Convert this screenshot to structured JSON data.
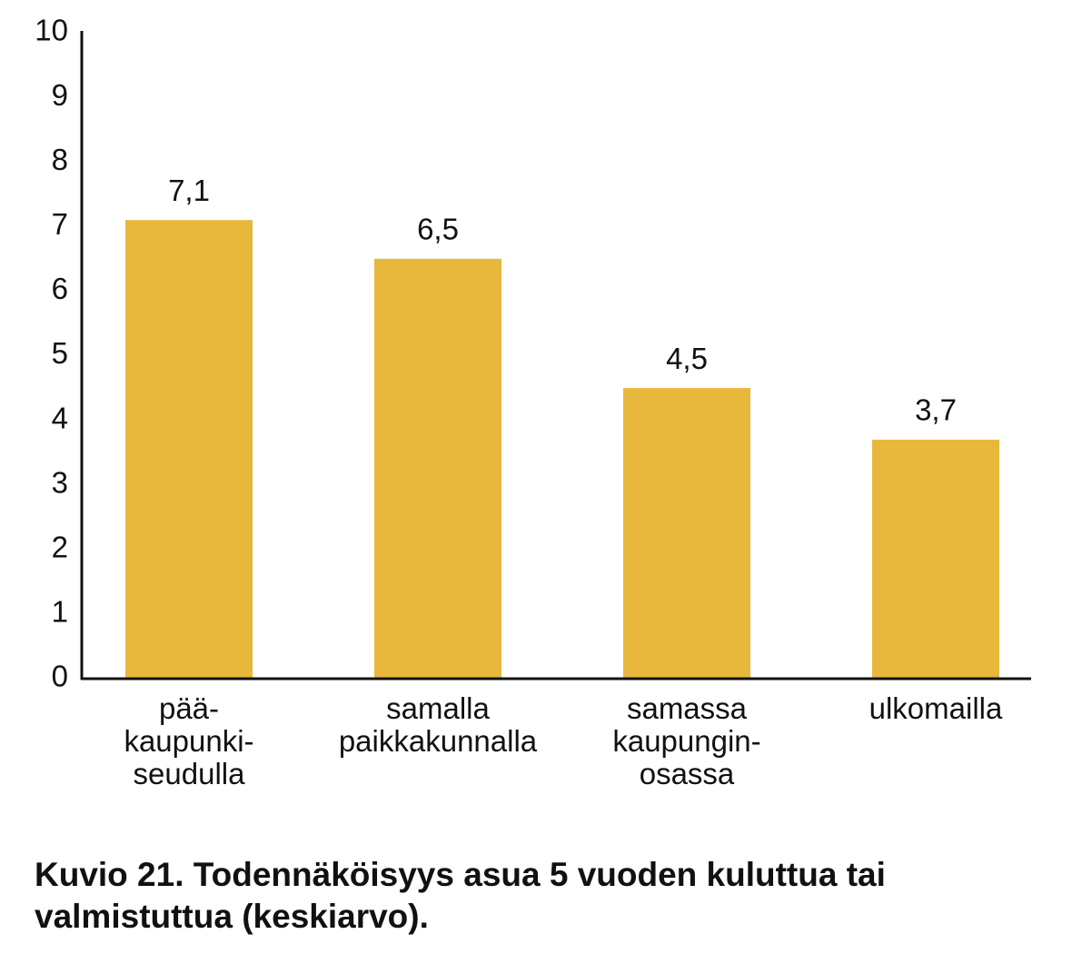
{
  "chart_data": {
    "type": "bar",
    "title": "Kuvio 21. Todennäköisyys asua 5 vuoden kuluttua tai valmistuttua (keskiarvo).",
    "categories": [
      "pää-\nkaupunki-\nseudulla",
      "samalla\npaikkakunnalla",
      "samassa\nkaupungin-\nosassa",
      "ulkomailla"
    ],
    "values": [
      7.1,
      6.5,
      4.5,
      3.7
    ],
    "value_labels": [
      "7,1",
      "6,5",
      "4,5",
      "3,7"
    ],
    "color": "#e8b83c",
    "ylim": [
      0,
      10
    ],
    "yticks": [
      0,
      1,
      2,
      3,
      4,
      5,
      6,
      7,
      8,
      9,
      10
    ],
    "grid": false
  }
}
